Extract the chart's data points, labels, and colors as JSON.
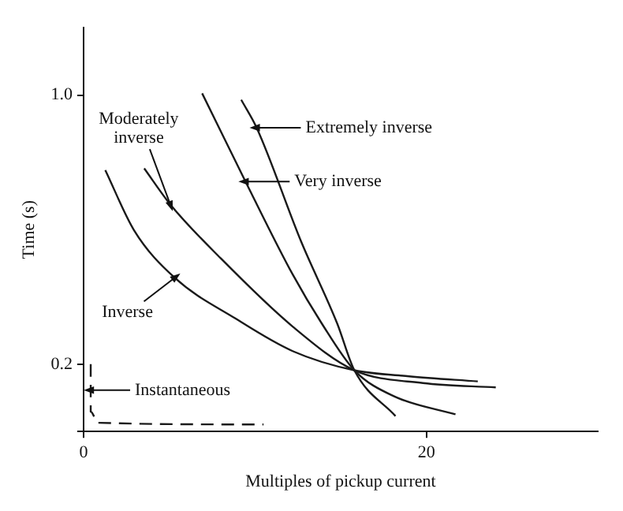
{
  "chart_data": {
    "type": "line",
    "xlabel": "Multiples of pickup current",
    "ylabel": "Time (s)",
    "xlim": [
      0,
      30
    ],
    "xticks": [
      0,
      20
    ],
    "ylim": [
      0,
      1.2
    ],
    "yticks": [
      {
        "value": 0,
        "label": null
      },
      0.2,
      {
        "value": 1.0,
        "label": "1.0"
      }
    ],
    "grid": false,
    "legend": false,
    "marker": "none",
    "series": [
      {
        "color": "#1a1a1a",
        "x": [
          1.27,
          2.95,
          5.32,
          8.86,
          12.2,
          15.8,
          19.0,
          23.0
        ],
        "values": [
          0.777,
          0.598,
          0.457,
          0.336,
          0.239,
          0.182,
          0.164,
          0.149
        ]
      },
      {
        "color": "#1a1a1a",
        "x": [
          3.54,
          5.06,
          8.0,
          12.2,
          15.8,
          19.8,
          24.05
        ],
        "values": [
          0.782,
          0.675,
          0.515,
          0.312,
          0.182,
          0.144,
          0.131
        ]
      },
      {
        "color": "#1a1a1a",
        "x": [
          6.92,
          9.45,
          12.2,
          13.9,
          15.8,
          18.1,
          21.7
        ],
        "values": [
          1.005,
          0.743,
          0.467,
          0.321,
          0.182,
          0.105,
          0.051
        ]
      },
      {
        "color": "#1a1a1a",
        "x": [
          9.2,
          10.1,
          12.7,
          14.8,
          15.8,
          18.2
        ],
        "values": [
          0.986,
          0.903,
          0.564,
          0.321,
          0.182,
          0.046
        ]
      },
      {
        "color": "#1a1a1a",
        "line_style": "dashed",
        "x": [
          0.42,
          0.42,
          0.42,
          0.84,
          10.5
        ],
        "values": [
          0.2,
          0.123,
          0.059,
          0.026,
          0.021
        ]
      }
    ],
    "annotations": [
      {
        "text": "Inverse",
        "x": 5.32,
        "y": 0.457
      },
      {
        "text": "Moderately\ninverse",
        "x": 5.06,
        "y": 0.675
      },
      {
        "text": "Very inverse",
        "x": 9.45,
        "y": 0.743
      },
      {
        "text": "Extremely inverse",
        "x": 10.1,
        "y": 0.903
      },
      {
        "text": "Instantaneous",
        "x": 0.42,
        "y": 0.123
      }
    ]
  }
}
